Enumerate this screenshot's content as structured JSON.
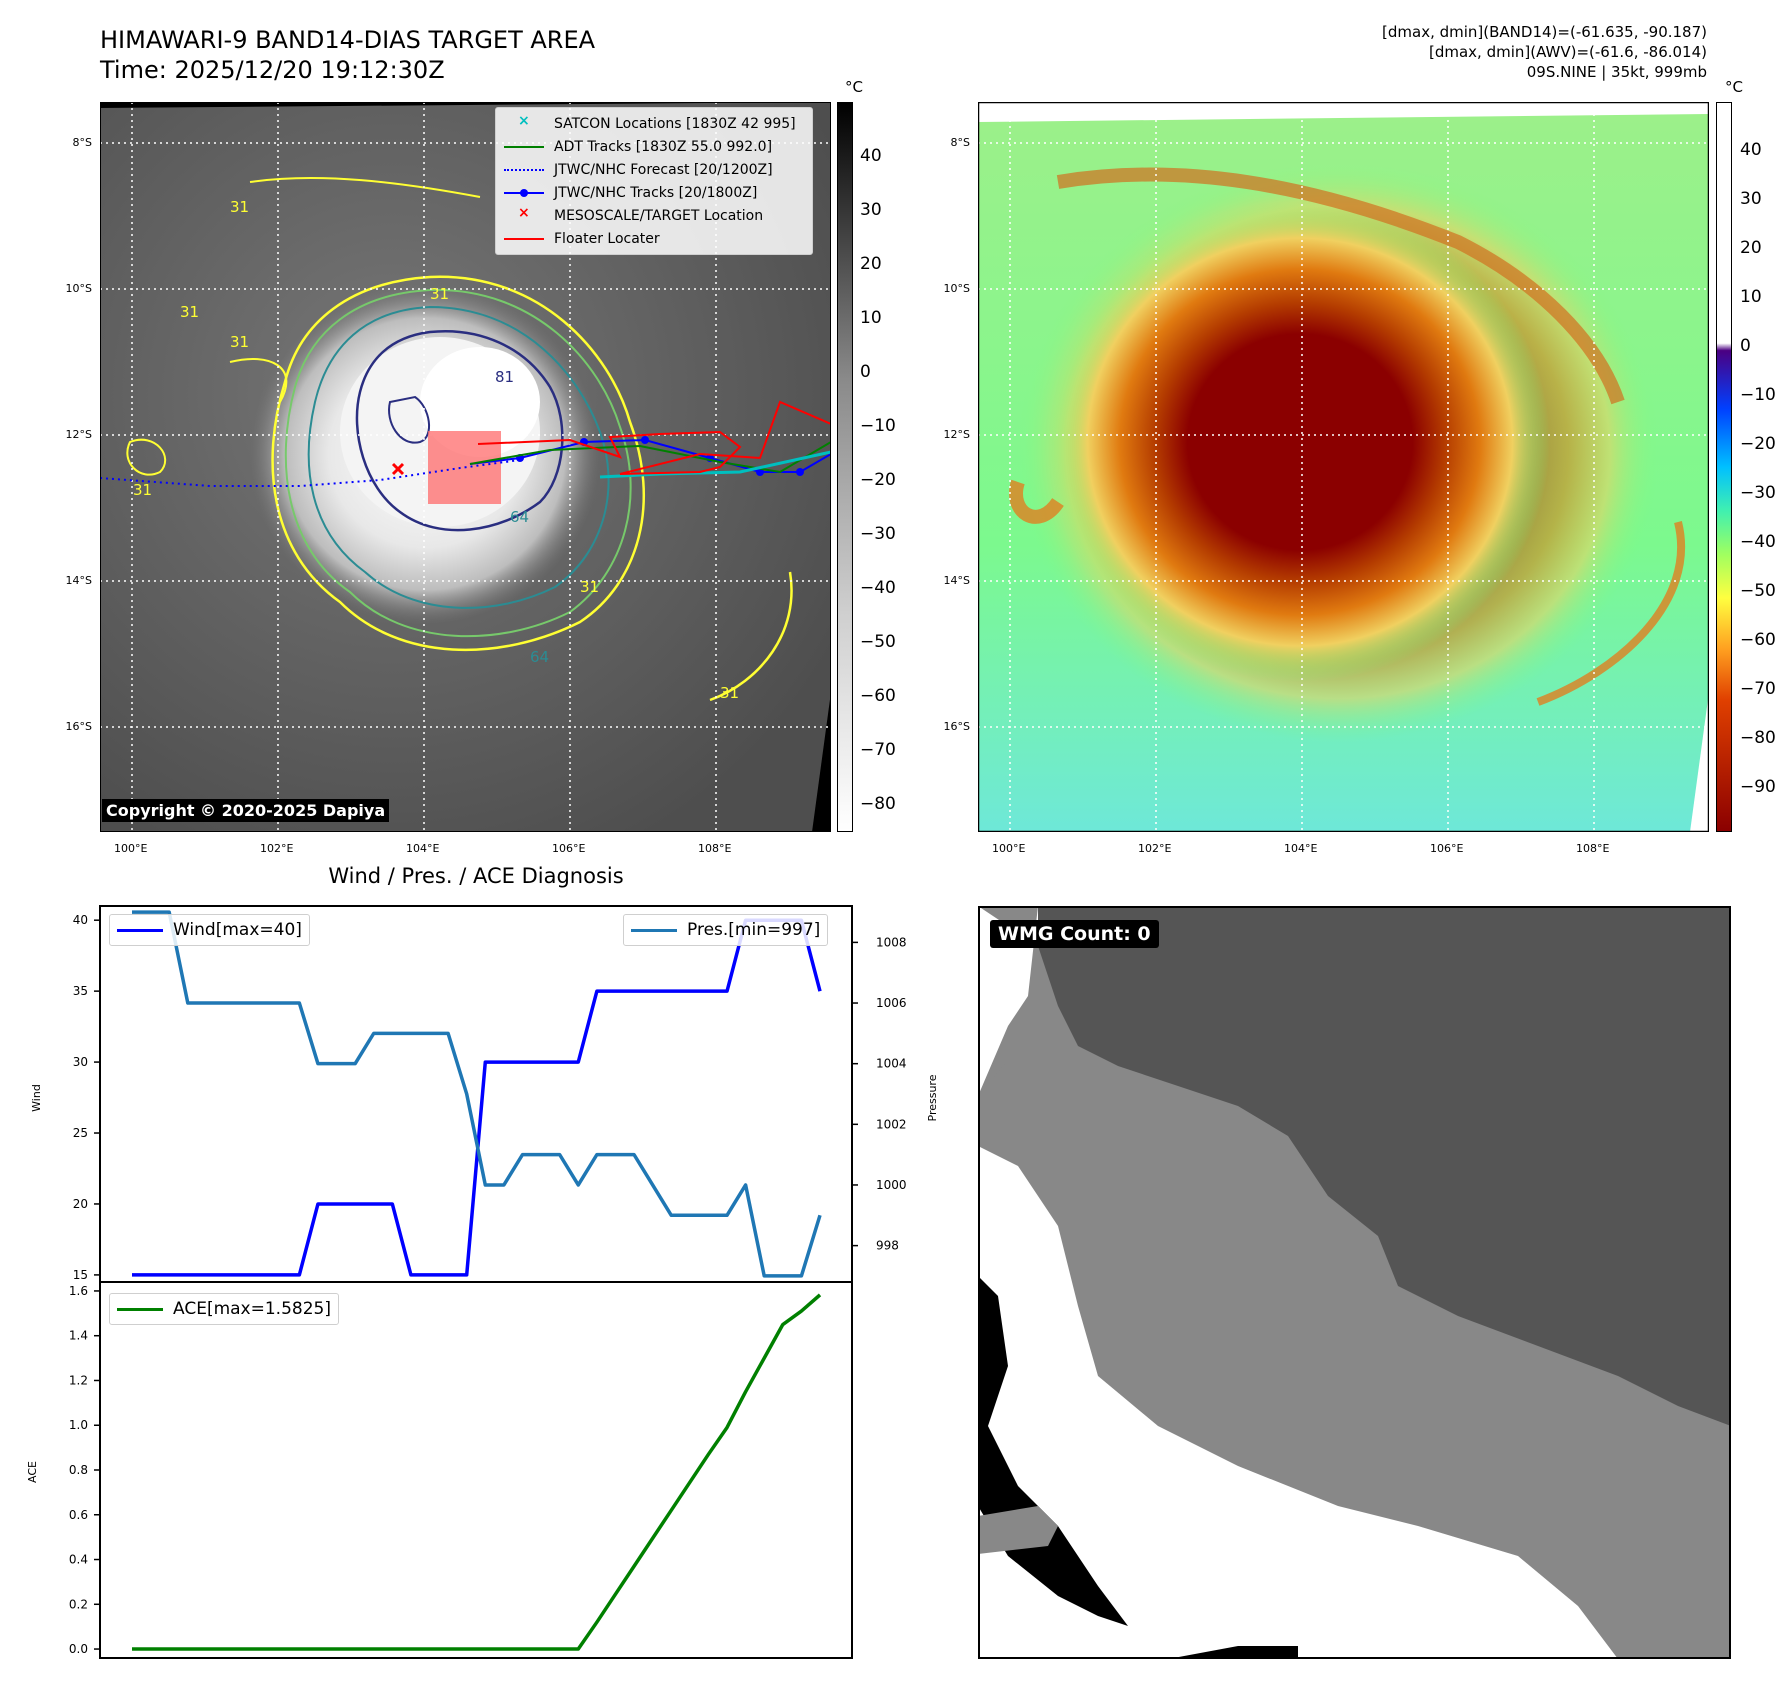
{
  "top_left": {
    "title": "HIMAWARI-9 BAND14-DIAS TARGET AREA",
    "time": "Time: 2025/12/20 19:12:30Z",
    "copyright": "Copyright © 2020-2025 Dapiya",
    "unit": "°C",
    "colorbar_ticks": [
      "40",
      "30",
      "20",
      "10",
      "0",
      "−10",
      "−20",
      "−30",
      "−40",
      "−50",
      "−60",
      "−70",
      "−80"
    ],
    "lat_labels": [
      "8°S",
      "10°S",
      "12°S",
      "14°S",
      "16°S"
    ],
    "lon_labels": [
      "100°E",
      "102°E",
      "104°E",
      "106°E",
      "108°E"
    ],
    "contour_labels": [
      "31",
      "31",
      "31",
      "31",
      "31",
      "64",
      "64",
      "81",
      "31",
      "31"
    ],
    "legend": [
      {
        "label": "SATCON Locations [1830Z 42 995]",
        "color": "#00bfbf",
        "kind": "x"
      },
      {
        "label": "ADT Tracks [1830Z 55.0 992.0]",
        "color": "#008000",
        "kind": "line"
      },
      {
        "label": "JTWC/NHC Forecast [20/1200Z]",
        "color": "#0000ff",
        "kind": "dotted"
      },
      {
        "label": "JTWC/NHC Tracks [20/1800Z]",
        "color": "#0000ff",
        "kind": "line-dot"
      },
      {
        "label": "MESOSCALE/TARGET Location",
        "color": "#ff0000",
        "kind": "x"
      },
      {
        "label": "Floater Locater",
        "color": "#ff0000",
        "kind": "line"
      }
    ]
  },
  "top_right": {
    "stats": [
      "[dmax, dmin](BAND14)=(-61.635, -90.187)",
      "[dmax, dmin](AWV)=(-61.6, -86.014)",
      "09S.NINE | 35kt, 999mb"
    ],
    "unit": "°C",
    "colorbar_ticks": [
      "40",
      "30",
      "20",
      "10",
      "0",
      "−10",
      "−20",
      "−30",
      "−40",
      "−50",
      "−60",
      "−70",
      "−80",
      "−90"
    ],
    "lat_labels": [
      "8°S",
      "10°S",
      "12°S",
      "14°S",
      "16°S"
    ],
    "lon_labels": [
      "100°E",
      "102°E",
      "104°E",
      "106°E",
      "108°E"
    ]
  },
  "wmg": {
    "label": "WMG Count: 0"
  },
  "chart_data": [
    {
      "type": "line",
      "title": "Wind / Pres. / ACE Diagnosis",
      "ylabel": "Wind",
      "y2label": "Pressure",
      "ylim": [
        14.5,
        41
      ],
      "y2lim": [
        996.8,
        1009.2
      ],
      "yticks": [
        15,
        20,
        25,
        30,
        35,
        40
      ],
      "y2ticks": [
        998,
        1000,
        1002,
        1004,
        1006,
        1008
      ],
      "x": [
        0,
        1,
        2,
        3,
        4,
        5,
        6,
        7,
        8,
        9,
        10,
        11,
        12,
        13,
        14,
        15,
        16,
        17,
        18,
        19,
        20,
        21,
        22,
        23,
        24,
        25,
        26,
        27,
        28,
        29,
        30,
        31,
        32,
        33,
        34,
        35,
        36,
        37
      ],
      "series": [
        {
          "name": "Wind[max=40]",
          "color": "#0000ff",
          "axis": "left",
          "values": [
            15,
            15,
            15,
            15,
            15,
            15,
            15,
            15,
            15,
            15,
            20,
            20,
            20,
            20,
            20,
            15,
            15,
            15,
            15,
            30,
            30,
            30,
            30,
            30,
            30,
            35,
            35,
            35,
            35,
            35,
            35,
            35,
            35,
            40,
            40,
            40,
            40,
            35
          ]
        },
        {
          "name": "Pres.[min=997]",
          "color": "#1f77b4",
          "axis": "right",
          "values": [
            1009,
            1009,
            1009,
            1006,
            1006,
            1006,
            1006,
            1006,
            1006,
            1006,
            1004,
            1004,
            1004,
            1005,
            1005,
            1005,
            1005,
            1005,
            1003,
            1000,
            1000,
            1001,
            1001,
            1001,
            1000,
            1001,
            1001,
            1001,
            1000,
            999,
            999,
            999,
            999,
            1000,
            997,
            997,
            997,
            999
          ]
        }
      ]
    },
    {
      "type": "line",
      "ylabel": "ACE",
      "ylim": [
        -0.04,
        1.64
      ],
      "yticks": [
        "0.0",
        "0.2",
        "0.4",
        "0.6",
        "0.8",
        "1.0",
        "1.2",
        "1.4",
        "1.6"
      ],
      "x": [
        0,
        1,
        2,
        3,
        4,
        5,
        6,
        7,
        8,
        9,
        10,
        11,
        12,
        13,
        14,
        15,
        16,
        17,
        18,
        19,
        20,
        21,
        22,
        23,
        24,
        25,
        26,
        27,
        28,
        29,
        30,
        31,
        32,
        33,
        34,
        35,
        36,
        37
      ],
      "series": [
        {
          "name": "ACE[max=1.5825]",
          "color": "#008000",
          "values": [
            0,
            0,
            0,
            0,
            0,
            0,
            0,
            0,
            0,
            0,
            0,
            0,
            0,
            0,
            0,
            0,
            0,
            0,
            0,
            0,
            0,
            0,
            0,
            0,
            0,
            0.12,
            0.245,
            0.37,
            0.495,
            0.62,
            0.745,
            0.87,
            0.99,
            1.15,
            1.3,
            1.45,
            1.51,
            1.5825
          ]
        }
      ]
    }
  ]
}
